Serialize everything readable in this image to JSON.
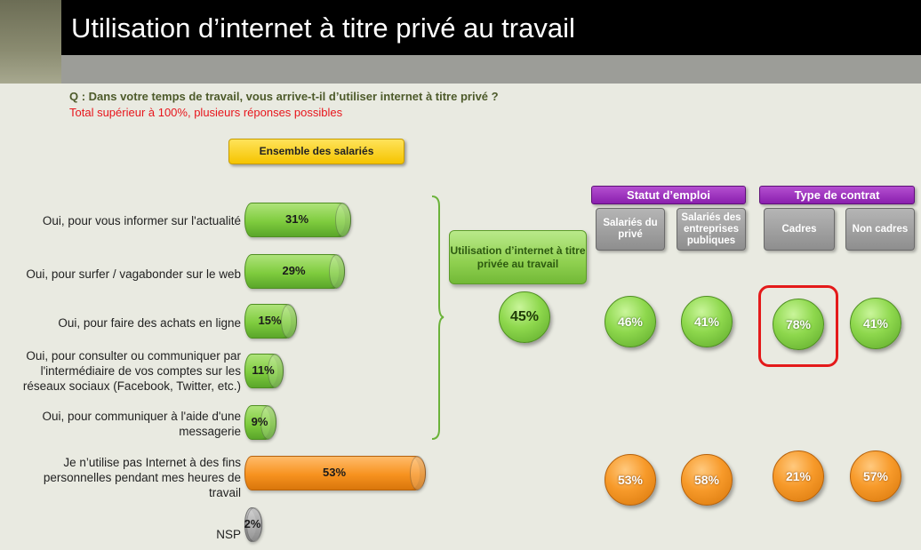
{
  "title": "Utilisation d’internet à titre privé au travail",
  "question": "Q : Dans votre temps de travail, vous arrive-t-il d’utiliser internet à titre privé ?",
  "note": "Total supérieur à 100%, plusieurs réponses possibles",
  "group_button": "Ensemble des salariés",
  "usage_box": "Utilisation d’internet à titre privée au travail",
  "usage_total": "45%",
  "headers": {
    "statut": "Statut d’emploi",
    "contrat": "Type de contrat",
    "columns": [
      "Salariés du privé",
      "Salariés des entreprises publiques",
      "Cadres",
      "Non cadres"
    ]
  },
  "colors": {
    "green": "#7fcc3e",
    "orange": "#f7921f",
    "gray": "#9b9b9b",
    "purple": "#8a1fae",
    "highlight": "#e41a1a"
  },
  "chart_data": {
    "type": "bar",
    "title": "Utilisation d’internet à titre privé au travail",
    "categories": [
      "Oui, pour vous informer sur l'actualité",
      "Oui, pour surfer / vagabonder sur le web",
      "Oui, pour faire des achats en ligne",
      "Oui, pour consulter ou communiquer par l'intermédiaire de vos comptes sur les réseaux sociaux (Facebook, Twitter, etc.)",
      "Oui, pour communiquer à l'aide d'une messagerie",
      "Je n’utilise pas Internet à des fins personnelles pendant mes heures de travail",
      "NSP"
    ],
    "values": [
      31,
      29,
      15,
      11,
      9,
      53,
      2
    ],
    "labels": [
      "31%",
      "29%",
      "15%",
      "11%",
      "9%",
      "53%",
      "2%"
    ],
    "bar_colors": [
      "green",
      "green",
      "green",
      "green",
      "green",
      "orange",
      "gray"
    ],
    "breakdown": {
      "columns": [
        "Salariés du privé",
        "Salariés des entreprises publiques",
        "Cadres",
        "Non cadres"
      ],
      "uses_internet": [
        "46%",
        "41%",
        "78%",
        "41%"
      ],
      "does_not_use": [
        "53%",
        "58%",
        "21%",
        "57%"
      ]
    }
  }
}
